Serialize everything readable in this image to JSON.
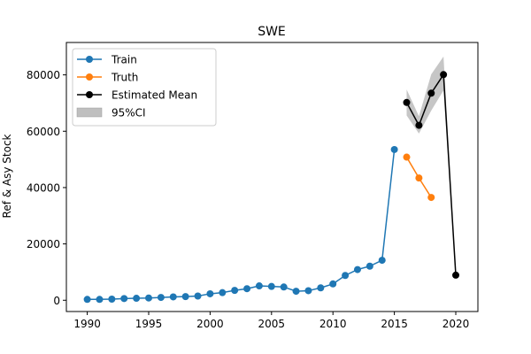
{
  "chart_data": {
    "type": "line",
    "title": "SWE",
    "xlabel": "",
    "ylabel": "Ref & Asy Stock",
    "xlim": [
      1988.3,
      2021.8
    ],
    "ylim": [
      -4000,
      91500
    ],
    "x_ticks": [
      1990,
      1995,
      2000,
      2005,
      2010,
      2015,
      2020
    ],
    "x_tick_labels": [
      "1990",
      "1995",
      "2000",
      "2005",
      "2010",
      "2015",
      "2020"
    ],
    "y_ticks": [
      0,
      20000,
      40000,
      60000,
      80000
    ],
    "y_tick_labels": [
      "0",
      "20000",
      "40000",
      "60000",
      "80000"
    ],
    "grid": false,
    "legend_position": "top-left",
    "legend": [
      "Train",
      "Truth",
      "Estimated Mean",
      "95%CI"
    ],
    "series": [
      {
        "name": "Train",
        "color": "#1f77b4",
        "marker": "circle",
        "x": [
          1990,
          1991,
          1992,
          1993,
          1994,
          1995,
          1996,
          1997,
          1998,
          1999,
          2000,
          2001,
          2002,
          2003,
          2004,
          2005,
          2006,
          2007,
          2008,
          2009,
          2010,
          2011,
          2012,
          2013,
          2014,
          2015
        ],
        "y": [
          300,
          300,
          400,
          600,
          700,
          800,
          1000,
          1200,
          1300,
          1500,
          2300,
          2700,
          3500,
          4100,
          5100,
          4900,
          4700,
          3200,
          3400,
          4400,
          5800,
          8800,
          10900,
          12100,
          14200,
          53500
        ]
      },
      {
        "name": "Truth",
        "color": "#ff7f0e",
        "marker": "circle",
        "x": [
          2016,
          2017,
          2018
        ],
        "y": [
          50800,
          43400,
          36500
        ]
      },
      {
        "name": "Estimated Mean",
        "color": "#000000",
        "marker": "circle",
        "x": [
          2016,
          2017,
          2018,
          2019,
          2020
        ],
        "y": [
          70200,
          62100,
          73500,
          80100,
          8900
        ]
      }
    ],
    "band": {
      "name": "95%CI",
      "color": "#808080",
      "x": [
        2016,
        2017,
        2018,
        2019,
        2020
      ],
      "upper": [
        74800,
        65300,
        80200,
        86500,
        9400
      ],
      "lower": [
        65600,
        59200,
        67300,
        74500,
        8400
      ]
    }
  }
}
